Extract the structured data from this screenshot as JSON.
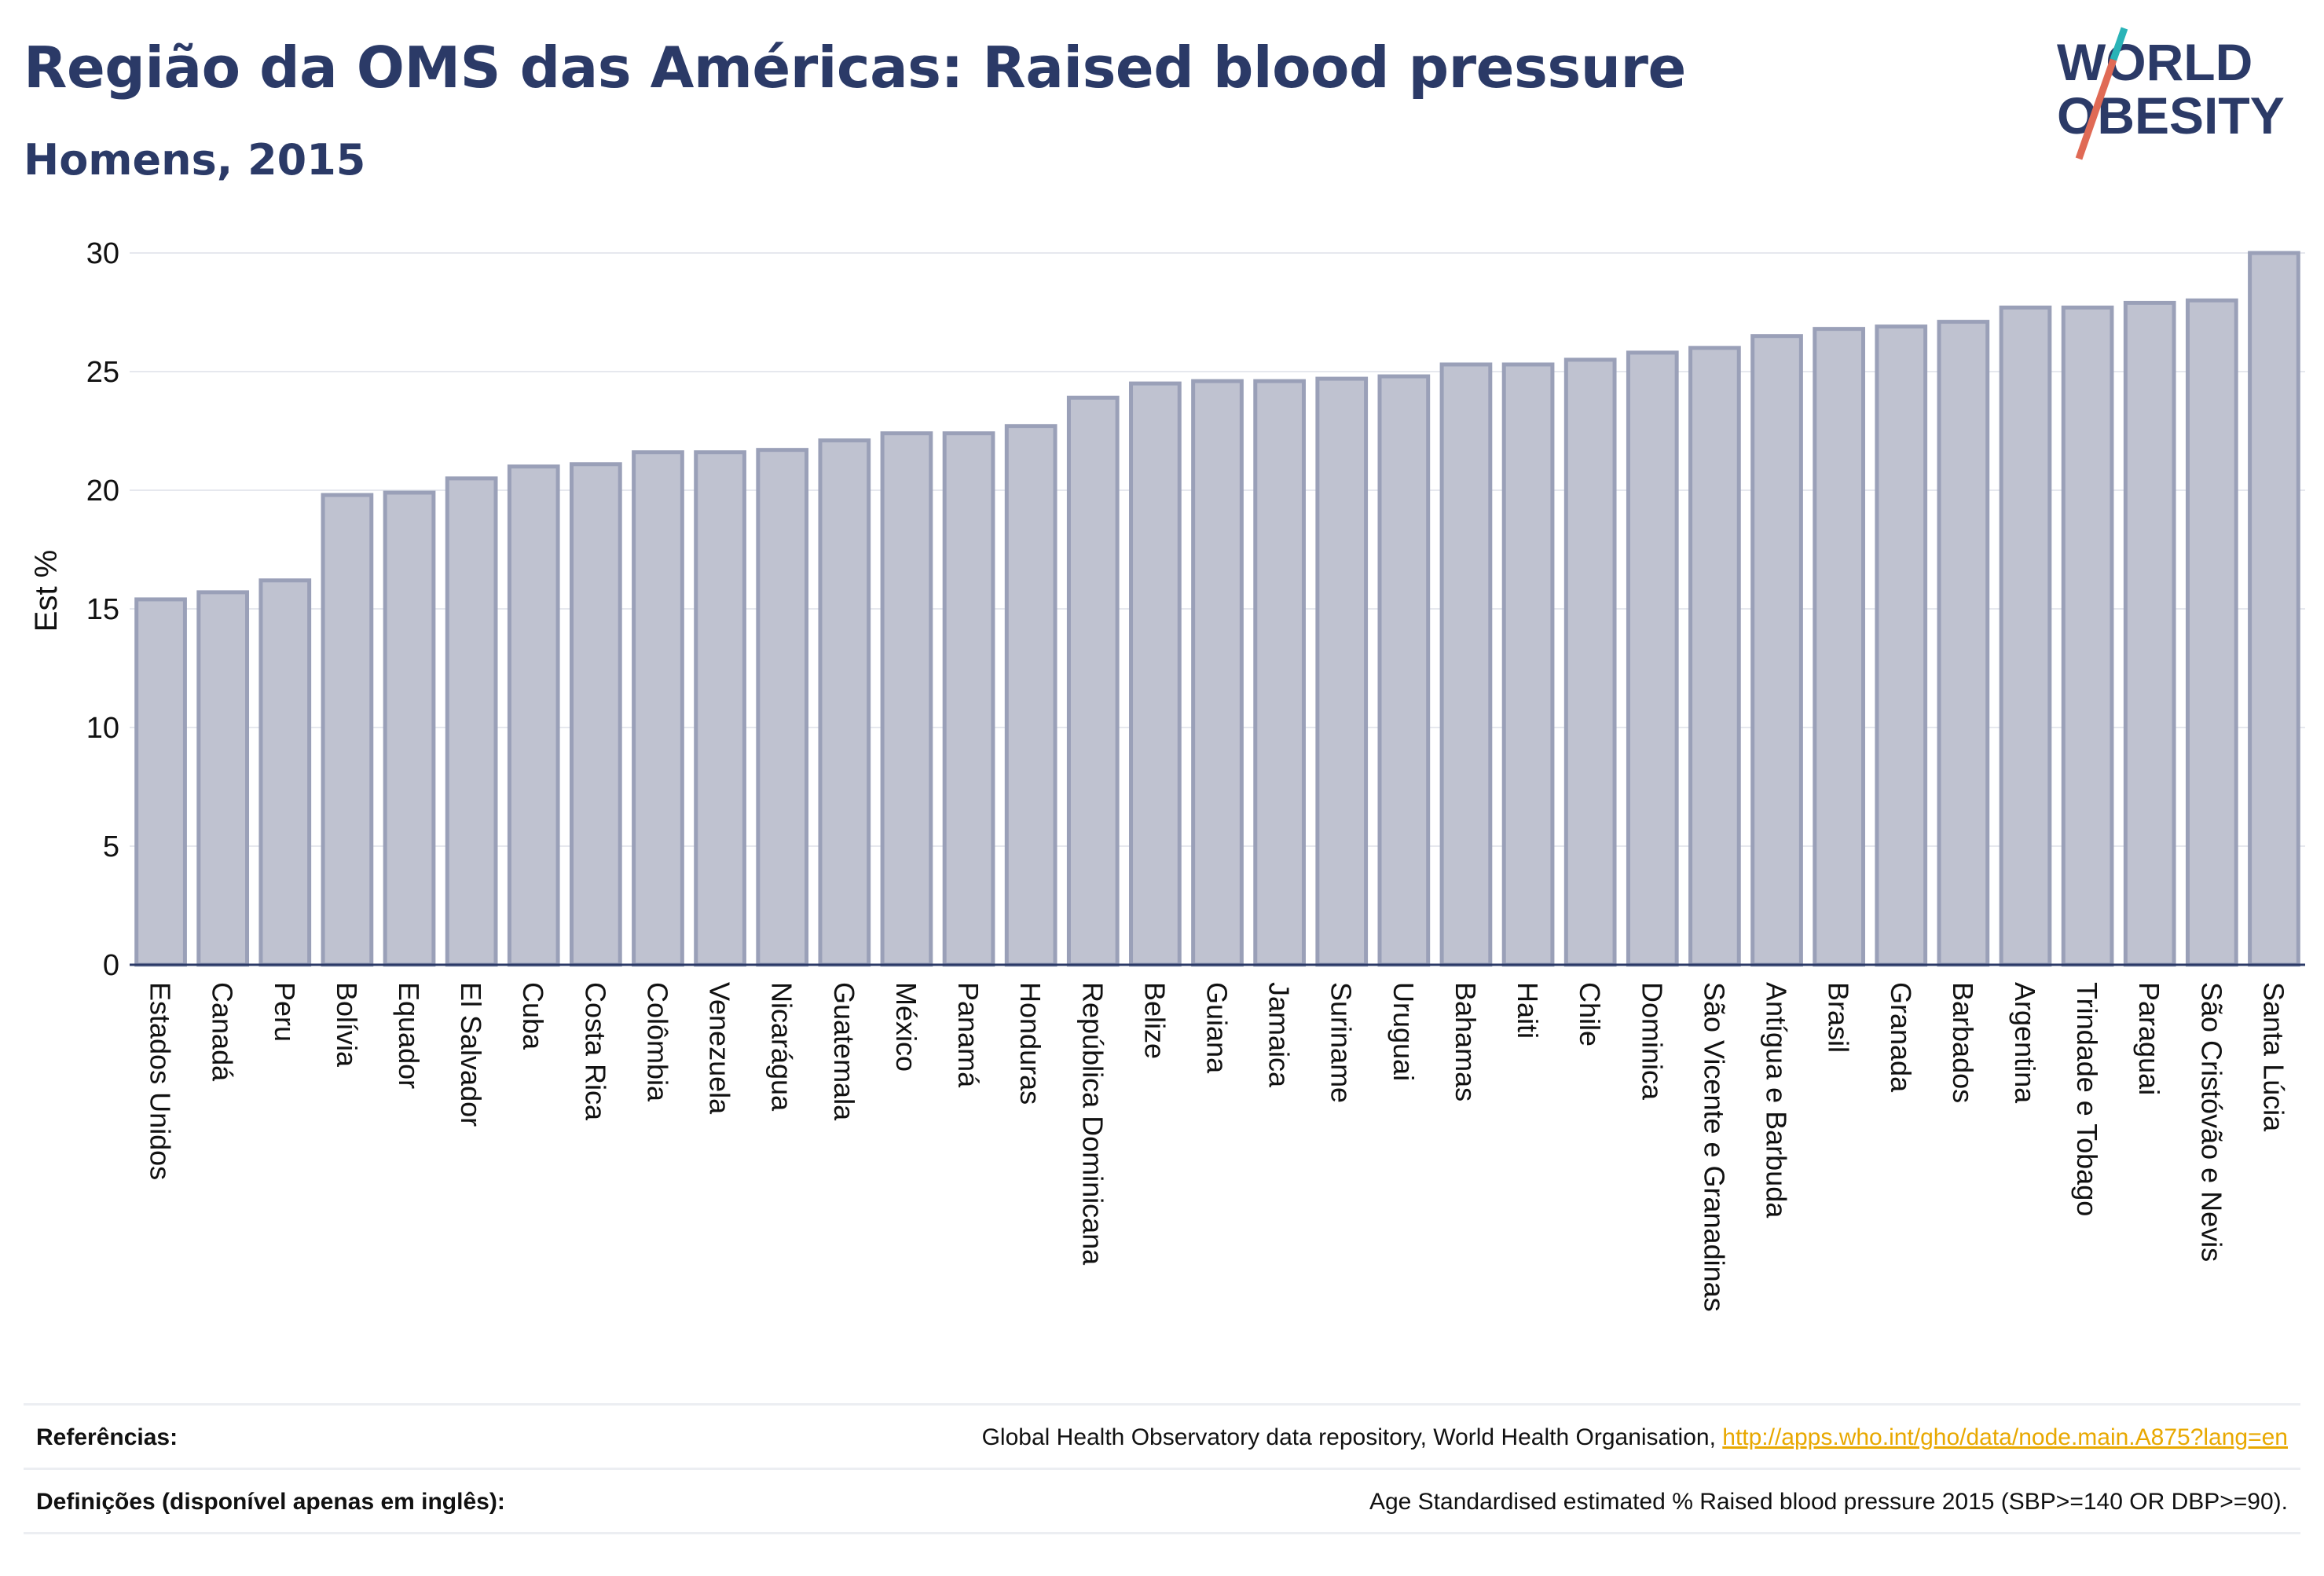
{
  "header": {
    "title": "Região da OMS das Américas: Raised blood pressure",
    "subtitle": "Homens, 2015"
  },
  "logo": {
    "line1": "WORLD",
    "line2": "OBESITY",
    "icon": "world-obesity-logo"
  },
  "colors": {
    "bar_fill": "#bfc2d0",
    "bar_stroke": "#9aa0b8",
    "title": "#2b3a67",
    "link": "#e8a800",
    "logo_slash": "#e06a55",
    "logo_accent": "#2ab3b7"
  },
  "chart_data": {
    "type": "bar",
    "ylabel": "Est %",
    "ylim": [
      0,
      30
    ],
    "yticks": [
      0,
      5,
      10,
      15,
      20,
      25,
      30
    ],
    "grid": true,
    "categories": [
      "Estados Unidos",
      "Canadá",
      "Peru",
      "Bolívia",
      "Equador",
      "El Salvador",
      "Cuba",
      "Costa Rica",
      "Colômbia",
      "Venezuela",
      "Nicarágua",
      "Guatemala",
      "México",
      "Panamá",
      "Honduras",
      "República Dominicana",
      "Belize",
      "Guiana",
      "Jamaica",
      "Suriname",
      "Uruguai",
      "Bahamas",
      "Haiti",
      "Chile",
      "Dominica",
      "São Vicente e Granadinas",
      "Antígua e Barbuda",
      "Brasil",
      "Granada",
      "Barbados",
      "Argentina",
      "Trindade e Tobago",
      "Paraguai",
      "São Cristóvão e Nevis",
      "Santa Lúcia"
    ],
    "values": [
      15.4,
      15.7,
      16.2,
      19.8,
      19.9,
      20.5,
      21.0,
      21.1,
      21.6,
      21.6,
      21.7,
      22.1,
      22.4,
      22.4,
      22.7,
      23.9,
      24.5,
      24.6,
      24.6,
      24.7,
      24.8,
      25.3,
      25.3,
      25.5,
      25.8,
      26.0,
      26.5,
      26.8,
      26.9,
      27.1,
      27.7,
      27.7,
      27.9,
      28.0,
      30.0
    ]
  },
  "references": {
    "refs_label": "Referências:",
    "refs_text": "Global Health Observatory data repository, World Health Organisation, ",
    "refs_link": "http://apps.who.int/gho/data/node.main.A875?lang=en",
    "defs_label": "Definições (disponível apenas em inglês):",
    "defs_text": "Age Standardised estimated % Raised blood pressure 2015 (SBP>=140 OR DBP>=90)."
  }
}
